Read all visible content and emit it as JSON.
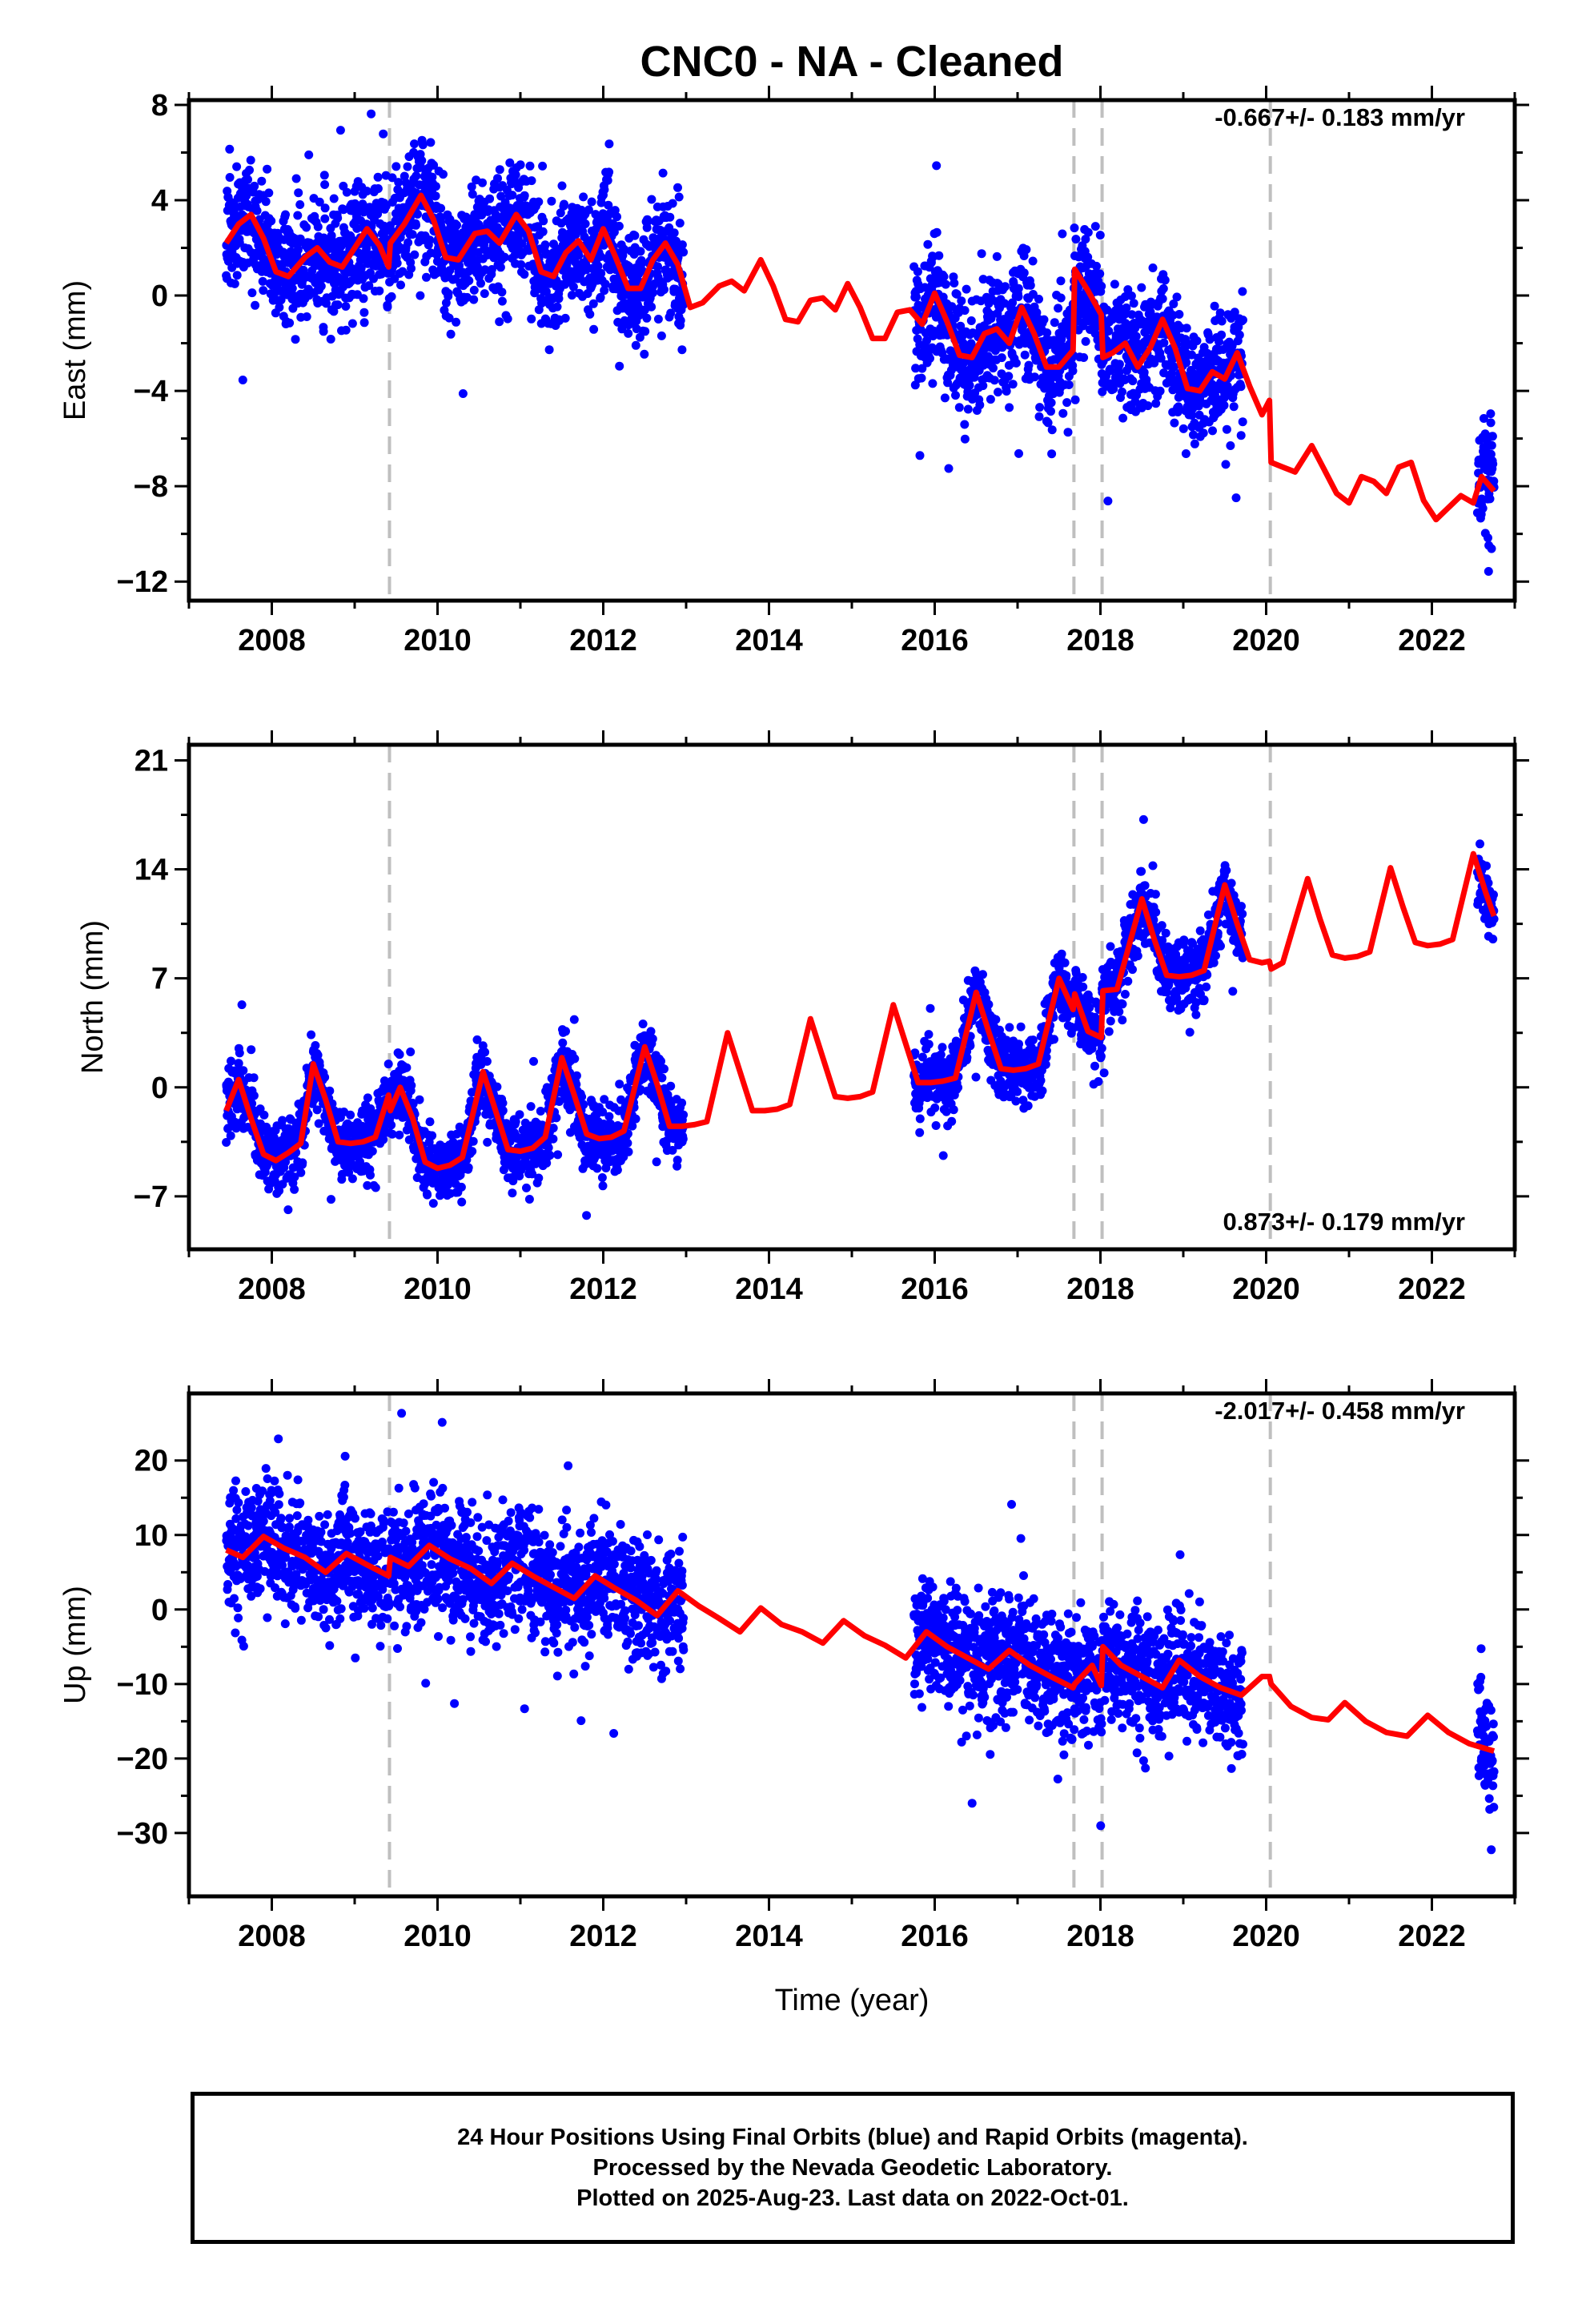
{
  "title": "CNC0  - NA - Cleaned",
  "xlabel": "Time (year)",
  "x_ticks": [
    2008,
    2010,
    2012,
    2014,
    2016,
    2018,
    2020,
    2022
  ],
  "x_range": [
    2007.0,
    2023.0
  ],
  "events": [
    2009.42,
    2017.68,
    2018.02,
    2020.05
  ],
  "colors": {
    "points": "#0000ff",
    "model": "#ff0000",
    "events": "#bfbfbf"
  },
  "caption": [
    "24 Hour Positions Using Final Orbits (blue) and Rapid Orbits (magenta).",
    "Processed by the Nevada Geodetic Laboratory.",
    "Plotted on 2025-Aug-23. Last data on 2022-Oct-01."
  ],
  "chart_data": [
    {
      "type": "scatter",
      "component": "East",
      "ylabel": "East (mm)",
      "ylim": [
        -12.8,
        8.2
      ],
      "y_ticks": [
        8,
        4,
        0,
        -4,
        -8,
        -12
      ],
      "y_tick_labels": [
        "8",
        "4",
        "0",
        "−4",
        "−8",
        "−12"
      ],
      "rate": "-0.667+/- 0.183 mm/yr",
      "rate_position": "top-right",
      "data_segments": [
        {
          "start": 2007.45,
          "end": 2012.97
        },
        {
          "start": 2015.75,
          "end": 2019.72
        },
        {
          "start": 2022.55,
          "end": 2022.75
        }
      ],
      "model_curve": [
        [
          2007.45,
          2.2
        ],
        [
          2007.6,
          3.0
        ],
        [
          2007.75,
          3.4
        ],
        [
          2007.9,
          2.4
        ],
        [
          2008.05,
          1.0
        ],
        [
          2008.2,
          0.8
        ],
        [
          2008.4,
          1.6
        ],
        [
          2008.55,
          2.0
        ],
        [
          2008.7,
          1.4
        ],
        [
          2008.85,
          1.2
        ],
        [
          2009.0,
          2.0
        ],
        [
          2009.15,
          2.8
        ],
        [
          2009.3,
          2.1
        ],
        [
          2009.41,
          1.2
        ],
        [
          2009.43,
          2.2
        ],
        [
          2009.6,
          3.0
        ],
        [
          2009.8,
          4.2
        ],
        [
          2009.95,
          3.2
        ],
        [
          2010.1,
          1.6
        ],
        [
          2010.25,
          1.5
        ],
        [
          2010.45,
          2.6
        ],
        [
          2010.6,
          2.7
        ],
        [
          2010.75,
          2.2
        ],
        [
          2010.95,
          3.4
        ],
        [
          2011.1,
          2.7
        ],
        [
          2011.25,
          1.0
        ],
        [
          2011.4,
          0.8
        ],
        [
          2011.55,
          1.8
        ],
        [
          2011.7,
          2.3
        ],
        [
          2011.85,
          1.5
        ],
        [
          2012.0,
          2.8
        ],
        [
          2012.15,
          1.6
        ],
        [
          2012.3,
          0.3
        ],
        [
          2012.45,
          0.3
        ],
        [
          2012.6,
          1.5
        ],
        [
          2012.75,
          2.2
        ],
        [
          2012.9,
          1.3
        ],
        [
          2013.05,
          -0.5
        ],
        [
          2013.2,
          -0.3
        ],
        [
          2013.4,
          0.4
        ],
        [
          2013.55,
          0.6
        ],
        [
          2013.7,
          0.2
        ],
        [
          2013.9,
          1.5
        ],
        [
          2014.05,
          0.4
        ],
        [
          2014.2,
          -1.0
        ],
        [
          2014.35,
          -1.1
        ],
        [
          2014.5,
          -0.2
        ],
        [
          2014.65,
          -0.1
        ],
        [
          2014.8,
          -0.6
        ],
        [
          2014.95,
          0.5
        ],
        [
          2015.1,
          -0.5
        ],
        [
          2015.25,
          -1.8
        ],
        [
          2015.4,
          -1.8
        ],
        [
          2015.55,
          -0.7
        ],
        [
          2015.7,
          -0.6
        ],
        [
          2015.85,
          -1.2
        ],
        [
          2016.0,
          0.1
        ],
        [
          2016.15,
          -1.1
        ],
        [
          2016.3,
          -2.5
        ],
        [
          2016.45,
          -2.6
        ],
        [
          2016.6,
          -1.6
        ],
        [
          2016.75,
          -1.4
        ],
        [
          2016.9,
          -2.0
        ],
        [
          2017.05,
          -0.5
        ],
        [
          2017.2,
          -1.6
        ],
        [
          2017.35,
          -3.0
        ],
        [
          2017.5,
          -3.0
        ],
        [
          2017.67,
          -2.3
        ],
        [
          2017.69,
          1.1
        ],
        [
          2017.85,
          0.2
        ],
        [
          2018.01,
          -0.8
        ],
        [
          2018.03,
          -2.6
        ],
        [
          2018.15,
          -2.4
        ],
        [
          2018.3,
          -2.0
        ],
        [
          2018.45,
          -3.0
        ],
        [
          2018.6,
          -2.2
        ],
        [
          2018.75,
          -1.0
        ],
        [
          2018.9,
          -2.2
        ],
        [
          2019.05,
          -3.9
        ],
        [
          2019.2,
          -4.0
        ],
        [
          2019.35,
          -3.2
        ],
        [
          2019.5,
          -3.5
        ],
        [
          2019.65,
          -2.4
        ],
        [
          2019.8,
          -3.8
        ],
        [
          2019.95,
          -5.0
        ],
        [
          2020.04,
          -4.4
        ],
        [
          2020.06,
          -7.0
        ],
        [
          2020.2,
          -7.2
        ],
        [
          2020.35,
          -7.4
        ],
        [
          2020.55,
          -6.3
        ],
        [
          2020.7,
          -7.3
        ],
        [
          2020.85,
          -8.3
        ],
        [
          2021.0,
          -8.7
        ],
        [
          2021.15,
          -7.6
        ],
        [
          2021.3,
          -7.8
        ],
        [
          2021.45,
          -8.3
        ],
        [
          2021.6,
          -7.2
        ],
        [
          2021.75,
          -7.0
        ],
        [
          2021.9,
          -8.6
        ],
        [
          2022.05,
          -9.4
        ],
        [
          2022.2,
          -8.9
        ],
        [
          2022.35,
          -8.4
        ],
        [
          2022.5,
          -8.7
        ],
        [
          2022.6,
          -7.6
        ],
        [
          2022.75,
          -8.2
        ]
      ]
    },
    {
      "type": "scatter",
      "component": "North",
      "ylabel": "North (mm)",
      "ylim": [
        -10.4,
        22.0
      ],
      "y_ticks": [
        21,
        14,
        7,
        0,
        -7
      ],
      "y_tick_labels": [
        "21",
        "14",
        "7",
        "0",
        "−7"
      ],
      "rate": "0.873+/- 0.179 mm/yr",
      "rate_position": "bottom-right",
      "data_segments": [
        {
          "start": 2007.45,
          "end": 2012.97
        },
        {
          "start": 2015.75,
          "end": 2019.72
        },
        {
          "start": 2022.55,
          "end": 2022.75
        }
      ],
      "model_curve": [
        [
          2007.45,
          -1.5
        ],
        [
          2007.6,
          0.5
        ],
        [
          2007.75,
          -2.0
        ],
        [
          2007.9,
          -4.3
        ],
        [
          2008.05,
          -4.7
        ],
        [
          2008.2,
          -4.2
        ],
        [
          2008.35,
          -3.6
        ],
        [
          2008.5,
          1.5
        ],
        [
          2008.65,
          -0.8
        ],
        [
          2008.8,
          -3.5
        ],
        [
          2008.95,
          -3.6
        ],
        [
          2009.1,
          -3.5
        ],
        [
          2009.25,
          -3.2
        ],
        [
          2009.41,
          -0.5
        ],
        [
          2009.43,
          -1.5
        ],
        [
          2009.55,
          0.0
        ],
        [
          2009.7,
          -2.0
        ],
        [
          2009.85,
          -4.8
        ],
        [
          2010.0,
          -5.2
        ],
        [
          2010.15,
          -5.0
        ],
        [
          2010.3,
          -4.5
        ],
        [
          2010.55,
          1.0
        ],
        [
          2010.7,
          -1.5
        ],
        [
          2010.85,
          -4.0
        ],
        [
          2011.0,
          -4.1
        ],
        [
          2011.15,
          -3.9
        ],
        [
          2011.3,
          -3.2
        ],
        [
          2011.5,
          1.9
        ],
        [
          2011.65,
          -0.5
        ],
        [
          2011.8,
          -3.0
        ],
        [
          2011.95,
          -3.3
        ],
        [
          2012.1,
          -3.2
        ],
        [
          2012.25,
          -2.8
        ],
        [
          2012.5,
          2.6
        ],
        [
          2012.65,
          0.2
        ],
        [
          2012.8,
          -2.5
        ],
        [
          2012.95,
          -2.5
        ],
        [
          2013.1,
          -2.4
        ],
        [
          2013.25,
          -2.2
        ],
        [
          2013.5,
          3.5
        ],
        [
          2013.65,
          1.0
        ],
        [
          2013.8,
          -1.5
        ],
        [
          2013.95,
          -1.5
        ],
        [
          2014.1,
          -1.4
        ],
        [
          2014.25,
          -1.1
        ],
        [
          2014.5,
          4.4
        ],
        [
          2014.65,
          1.9
        ],
        [
          2014.8,
          -0.6
        ],
        [
          2014.95,
          -0.7
        ],
        [
          2015.1,
          -0.6
        ],
        [
          2015.25,
          -0.3
        ],
        [
          2015.5,
          5.3
        ],
        [
          2015.65,
          2.8
        ],
        [
          2015.8,
          0.3
        ],
        [
          2015.95,
          0.3
        ],
        [
          2016.1,
          0.4
        ],
        [
          2016.25,
          0.6
        ],
        [
          2016.5,
          6.1
        ],
        [
          2016.65,
          3.6
        ],
        [
          2016.8,
          1.2
        ],
        [
          2016.95,
          1.1
        ],
        [
          2017.1,
          1.2
        ],
        [
          2017.25,
          1.5
        ],
        [
          2017.5,
          7.0
        ],
        [
          2017.67,
          5.0
        ],
        [
          2017.69,
          6.0
        ],
        [
          2017.85,
          3.6
        ],
        [
          2018.01,
          3.2
        ],
        [
          2018.03,
          6.2
        ],
        [
          2018.2,
          6.3
        ],
        [
          2018.5,
          12.1
        ],
        [
          2018.65,
          9.5
        ],
        [
          2018.8,
          7.2
        ],
        [
          2018.95,
          7.1
        ],
        [
          2019.1,
          7.2
        ],
        [
          2019.25,
          7.5
        ],
        [
          2019.5,
          13.0
        ],
        [
          2019.65,
          10.5
        ],
        [
          2019.8,
          8.2
        ],
        [
          2019.95,
          8.0
        ],
        [
          2020.04,
          8.1
        ],
        [
          2020.06,
          7.6
        ],
        [
          2020.2,
          8.0
        ],
        [
          2020.5,
          13.4
        ],
        [
          2020.65,
          10.8
        ],
        [
          2020.8,
          8.5
        ],
        [
          2020.95,
          8.3
        ],
        [
          2021.1,
          8.4
        ],
        [
          2021.25,
          8.7
        ],
        [
          2021.5,
          14.1
        ],
        [
          2021.65,
          11.6
        ],
        [
          2021.8,
          9.3
        ],
        [
          2021.95,
          9.1
        ],
        [
          2022.1,
          9.2
        ],
        [
          2022.25,
          9.5
        ],
        [
          2022.5,
          15.0
        ],
        [
          2022.65,
          12.5
        ],
        [
          2022.75,
          11.0
        ]
      ]
    },
    {
      "type": "scatter",
      "component": "Up",
      "ylabel": "Up (mm)",
      "ylim": [
        -38.5,
        29.0
      ],
      "y_ticks": [
        20,
        10,
        0,
        -10,
        -20,
        -30
      ],
      "y_tick_labels": [
        "20",
        "10",
        "0",
        "−10",
        "−20",
        "−30"
      ],
      "rate": "-2.017+/- 0.458 mm/yr",
      "rate_position": "top-right",
      "data_segments": [
        {
          "start": 2007.45,
          "end": 2012.97
        },
        {
          "start": 2015.75,
          "end": 2019.72
        },
        {
          "start": 2022.55,
          "end": 2022.75
        }
      ],
      "model_curve": [
        [
          2007.45,
          8.0
        ],
        [
          2007.65,
          7.0
        ],
        [
          2007.9,
          9.8
        ],
        [
          2008.15,
          8.2
        ],
        [
          2008.4,
          7.0
        ],
        [
          2008.65,
          5.0
        ],
        [
          2008.9,
          7.5
        ],
        [
          2009.15,
          6.0
        ],
        [
          2009.41,
          4.5
        ],
        [
          2009.43,
          7.0
        ],
        [
          2009.65,
          5.8
        ],
        [
          2009.9,
          8.6
        ],
        [
          2010.15,
          6.8
        ],
        [
          2010.4,
          5.5
        ],
        [
          2010.65,
          3.5
        ],
        [
          2010.9,
          6.2
        ],
        [
          2011.15,
          4.5
        ],
        [
          2011.4,
          3.0
        ],
        [
          2011.65,
          1.5
        ],
        [
          2011.9,
          4.5
        ],
        [
          2012.15,
          2.8
        ],
        [
          2012.4,
          1.2
        ],
        [
          2012.65,
          -0.8
        ],
        [
          2012.9,
          2.5
        ],
        [
          2013.15,
          0.5
        ],
        [
          2013.4,
          -1.2
        ],
        [
          2013.65,
          -3.0
        ],
        [
          2013.9,
          0.2
        ],
        [
          2014.15,
          -2.0
        ],
        [
          2014.4,
          -3.0
        ],
        [
          2014.65,
          -4.5
        ],
        [
          2014.9,
          -1.5
        ],
        [
          2015.15,
          -3.5
        ],
        [
          2015.4,
          -4.8
        ],
        [
          2015.65,
          -6.5
        ],
        [
          2015.9,
          -3.0
        ],
        [
          2016.15,
          -5.0
        ],
        [
          2016.4,
          -6.5
        ],
        [
          2016.65,
          -8.0
        ],
        [
          2016.9,
          -5.5
        ],
        [
          2017.15,
          -7.5
        ],
        [
          2017.4,
          -9.0
        ],
        [
          2017.67,
          -10.5
        ],
        [
          2017.69,
          -10.0
        ],
        [
          2017.9,
          -7.5
        ],
        [
          2018.01,
          -10.2
        ],
        [
          2018.03,
          -5.0
        ],
        [
          2018.25,
          -7.5
        ],
        [
          2018.5,
          -9.0
        ],
        [
          2018.75,
          -10.5
        ],
        [
          2018.95,
          -6.8
        ],
        [
          2019.2,
          -9.0
        ],
        [
          2019.45,
          -10.5
        ],
        [
          2019.7,
          -11.5
        ],
        [
          2019.95,
          -9.0
        ],
        [
          2020.04,
          -9.0
        ],
        [
          2020.06,
          -10.0
        ],
        [
          2020.3,
          -13.0
        ],
        [
          2020.55,
          -14.5
        ],
        [
          2020.75,
          -14.8
        ],
        [
          2020.95,
          -12.5
        ],
        [
          2021.2,
          -15.0
        ],
        [
          2021.45,
          -16.5
        ],
        [
          2021.7,
          -17.0
        ],
        [
          2021.95,
          -14.2
        ],
        [
          2022.2,
          -16.5
        ],
        [
          2022.45,
          -18.0
        ],
        [
          2022.75,
          -19.0
        ]
      ]
    }
  ]
}
